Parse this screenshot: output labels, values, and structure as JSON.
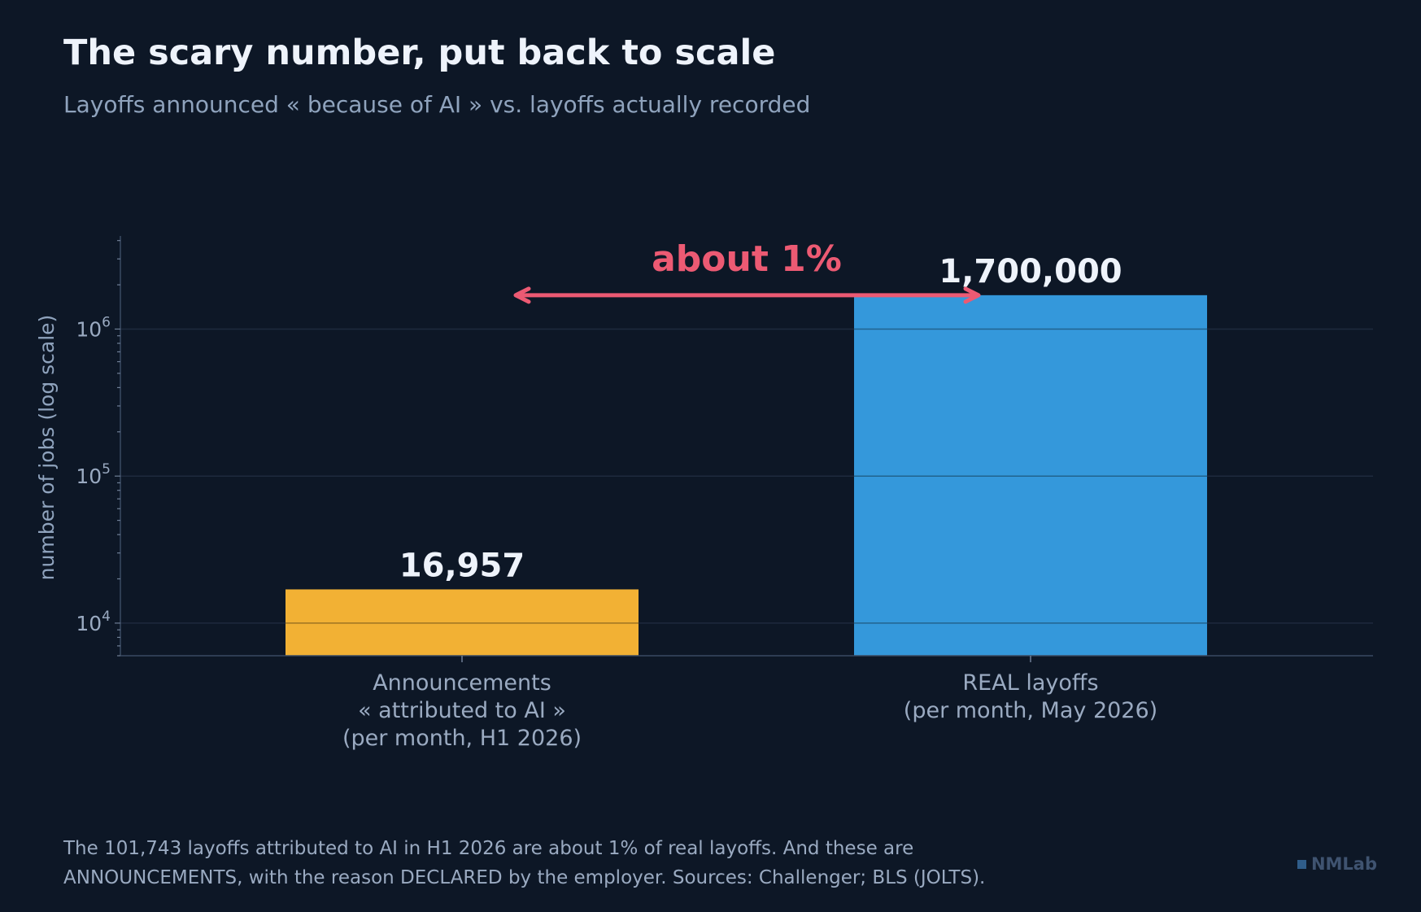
{
  "header": {
    "title": "The scary number, put back to scale",
    "subtitle": "Layoffs announced « because of AI » vs. layoffs actually recorded"
  },
  "footer": {
    "note_line1": "The 101,743 layoffs attributed to AI in H1 2026 are about 1% of real layoffs. And these are",
    "note_line2": "ANNOUNCEMENTS, with the reason DECLARED by the employer. Sources: Challenger; BLS (JOLTS).",
    "brand": "NMLab"
  },
  "colors": {
    "background": "#0d1726",
    "bar_announcements": "#f2b134",
    "bar_real": "#3498db",
    "annotation": "#ec5a73",
    "gridline": "#1e2a3d",
    "axis": "#3a4a62"
  },
  "chart_data": {
    "type": "bar",
    "title": "The scary number, put back to scale",
    "subtitle": "Layoffs announced « because of AI » vs. layoffs actually recorded",
    "ylabel": "number of jobs (log scale)",
    "yscale": "log",
    "ylim": [
      6000,
      4300000
    ],
    "grid": true,
    "yticks": [
      {
        "value": 10000,
        "base": "10",
        "exp": "4"
      },
      {
        "value": 100000,
        "base": "10",
        "exp": "5"
      },
      {
        "value": 1000000,
        "base": "10",
        "exp": "6"
      }
    ],
    "categories": [
      [
        "Announcements",
        "« attributed to AI »",
        "(per month, H1 2026)"
      ],
      [
        "REAL layoffs",
        "(per month, May 2026)"
      ]
    ],
    "values": [
      16957,
      1700000
    ],
    "value_labels": [
      "16,957",
      "1,700,000"
    ],
    "annotation": {
      "text": "about 1%",
      "arrow": "double-headed, between bar heights"
    }
  }
}
